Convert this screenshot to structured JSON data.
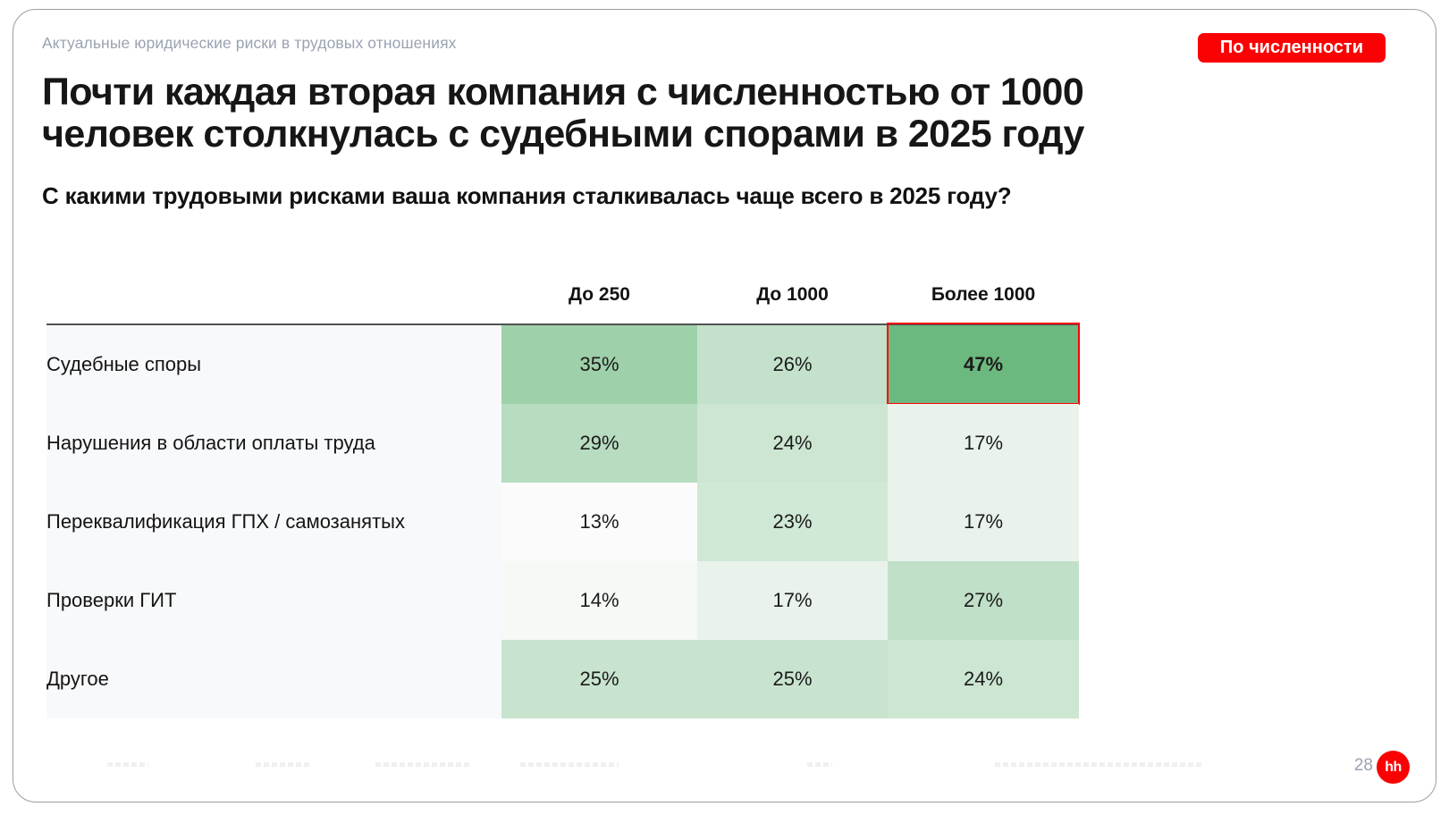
{
  "slide": {
    "eyebrow": "Актуальные юридические риски в трудовых отношениях",
    "badge": "По численности",
    "title_lines": [
      "Почти каждая вторая компания с численностью от 1000",
      "человек столкнулась с судебными спорами в 2025 году"
    ],
    "subtitle": "С какими трудовыми рисками ваша компания сталкивалась чаще всего в 2025 году?",
    "page_number": "28",
    "logo_text": "hh"
  },
  "colors": {
    "accent_red": "#fa0204",
    "heat_min": "#fafbfa",
    "heat_max": "#6cb97f",
    "label_column_bg": "#f8f9fb",
    "table_top_rule": "#515254",
    "muted_text": "#9aa2b1"
  },
  "chart_data": {
    "type": "heatmap",
    "title": "С какими трудовыми рисками ваша компания сталкивалась чаще всего в 2025 году?",
    "columns": [
      "До 250",
      "До 1000",
      "Более 1000"
    ],
    "rows": [
      {
        "label": "Судебные споры",
        "values": [
          35,
          26,
          47
        ]
      },
      {
        "label": "Нарушения в области оплаты труда",
        "values": [
          29,
          24,
          17
        ]
      },
      {
        "label": "Переквалификация ГПХ / самозанятых",
        "values": [
          13,
          23,
          17
        ]
      },
      {
        "label": "Проверки ГИТ",
        "values": [
          14,
          17,
          27
        ]
      },
      {
        "label": "Другое",
        "values": [
          25,
          25,
          24
        ]
      }
    ],
    "unit": "%",
    "highlighted_cell": {
      "row_index": 0,
      "col_index": 2,
      "value": 47,
      "outline_color": "#fa0204"
    },
    "color_scale": {
      "min_value": 13,
      "max_value": 47,
      "min_color": "#fafbfa",
      "max_color": "#6cb97f"
    },
    "legend": "none",
    "note": "cell shade encodes value; darker green = higher share"
  }
}
